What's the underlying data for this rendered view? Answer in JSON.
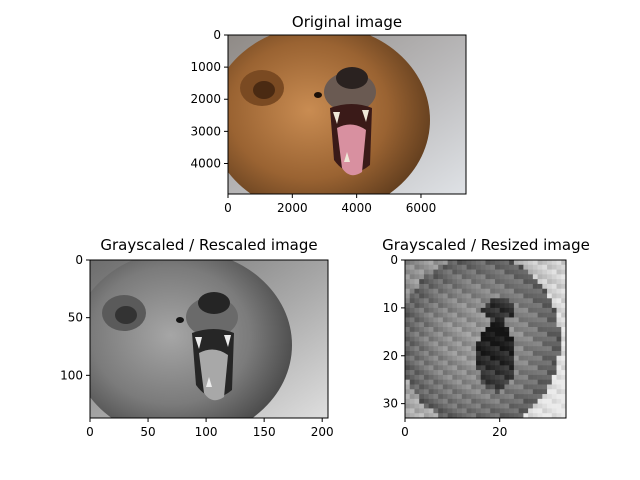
{
  "chart_data": [
    {
      "type": "image",
      "title": "Original image",
      "color_mode": "rgb",
      "subject": "brown-bear-roaring",
      "xlim": [
        0,
        7400
      ],
      "ylim": [
        4950,
        0
      ],
      "xticks": [
        0,
        2000,
        4000,
        6000
      ],
      "yticks": [
        0,
        1000,
        2000,
        3000,
        4000
      ]
    },
    {
      "type": "image",
      "title": "Grayscaled / Rescaled image",
      "color_mode": "grayscale",
      "subject": "brown-bear-roaring",
      "xlim": [
        0,
        205
      ],
      "ylim": [
        137,
        0
      ],
      "xticks": [
        0,
        50,
        100,
        150,
        200
      ],
      "yticks": [
        0,
        50,
        100
      ]
    },
    {
      "type": "image",
      "title": "Grayscaled / Resized image",
      "color_mode": "grayscale",
      "subject": "brown-bear-roaring",
      "xlim": [
        0,
        34
      ],
      "ylim": [
        33,
        0
      ],
      "xticks": [
        0,
        20
      ],
      "yticks": [
        0,
        10,
        20,
        30
      ]
    }
  ]
}
